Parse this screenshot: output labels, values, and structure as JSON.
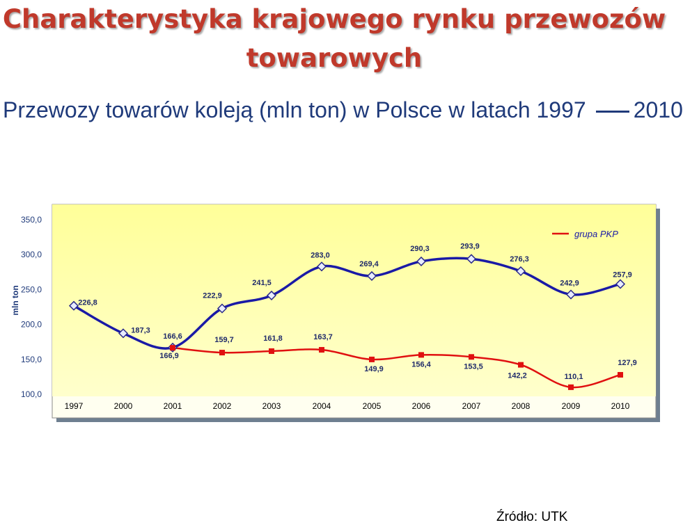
{
  "title": "Charakterystyka krajowego rynku przewozów towarowych",
  "subtitle_main": "Przewozy towarów koleją  (mln ton) w Polsce w latach 1997",
  "subtitle_end": "2010",
  "source": "Źródło: UTK",
  "chart_data": {
    "type": "line",
    "ylabel": "mln ton",
    "ylim": [
      100,
      350
    ],
    "yticks": [
      "100,0",
      "150,0",
      "200,0",
      "250,0",
      "300,0",
      "350,0"
    ],
    "categories": [
      "1997",
      "2000",
      "2001",
      "2002",
      "2003",
      "2004",
      "2005",
      "2006",
      "2007",
      "2008",
      "2009",
      "2010"
    ],
    "legend": "top-right",
    "series": [
      {
        "values": [
          226.8,
          187.3,
          166.9,
          222.9,
          241.5,
          283.0,
          269.4,
          290.3,
          293.9,
          276.3,
          242.9,
          257.9
        ],
        "labels": [
          "226,8",
          "187,3",
          "166,9",
          "222,9",
          "241,5",
          "283,0",
          "269,4",
          "290,3",
          "293,9",
          "276,3",
          "242,9",
          "257,9"
        ],
        "color": "#1a1aa6",
        "marker": "diamond"
      },
      {
        "name": "grupa PKP",
        "values": [
          null,
          null,
          166.6,
          159.7,
          161.8,
          163.7,
          149.9,
          156.4,
          153.5,
          142.2,
          110.1,
          127.9
        ],
        "labels": [
          "",
          "",
          "166,6",
          "159,7",
          "161,8",
          "163,7",
          "149,9",
          "156,4",
          "153,5",
          "142,2",
          "110,1",
          "127,9"
        ],
        "color": "#e01010",
        "marker": "square"
      }
    ]
  }
}
